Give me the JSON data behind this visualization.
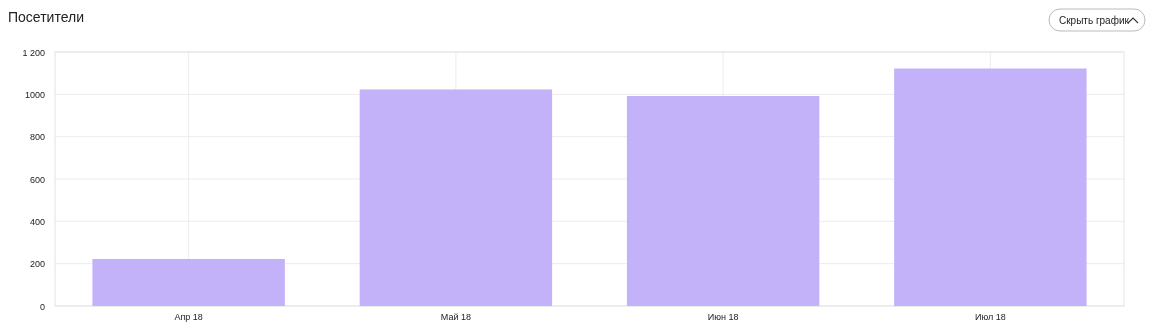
{
  "chart_data": {
    "type": "bar",
    "title": "Посетители",
    "categories": [
      "Апр 18",
      "Май 18",
      "Июн 18",
      "Июл 18"
    ],
    "values": [
      222,
      1023,
      992,
      1122
    ],
    "color": "#c3b1f9",
    "ylim": [
      0,
      1200
    ],
    "yticks": [
      0,
      200,
      400,
      600,
      800,
      1000,
      {
        "value": 1200,
        "label": "1 200"
      }
    ],
    "grid": true,
    "annotations": [
      "Скрыть график"
    ]
  }
}
